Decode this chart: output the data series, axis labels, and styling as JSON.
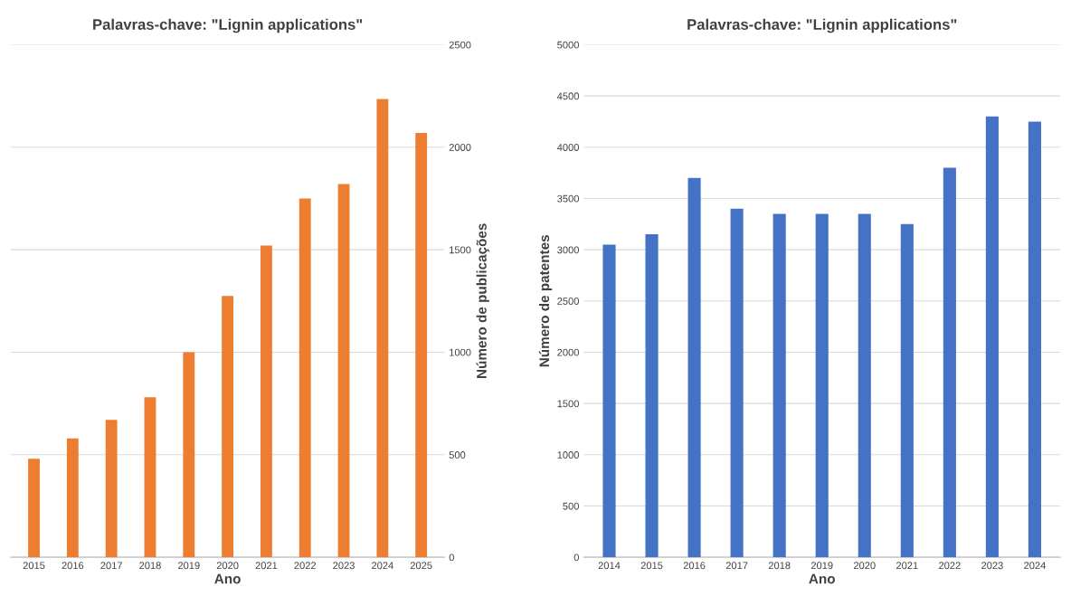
{
  "chart_data": [
    {
      "type": "bar",
      "title": "Palavras-chave: \"Lignin applications\"",
      "xlabel": "Ano",
      "ylabel": "Número de publicações",
      "categories": [
        "2015",
        "2016",
        "2017",
        "2018",
        "2019",
        "2020",
        "2021",
        "2022",
        "2023",
        "2024",
        "2025"
      ],
      "values": [
        480,
        580,
        670,
        780,
        1000,
        1275,
        1520,
        1750,
        1820,
        2235,
        2070
      ],
      "color": "#ed7d31",
      "ylim": [
        0,
        2500
      ],
      "yticks": [
        0,
        500,
        1000,
        1500,
        2000,
        2500
      ],
      "grid": "y"
    },
    {
      "type": "bar",
      "title": "Palavras-chave: \"Lignin applications\"",
      "xlabel": "Ano",
      "ylabel": "Número de patentes",
      "categories": [
        "2014",
        "2015",
        "2016",
        "2017",
        "2018",
        "2019",
        "2020",
        "2021",
        "2022",
        "2023",
        "2024"
      ],
      "values": [
        3050,
        3150,
        3700,
        3400,
        3350,
        3350,
        3350,
        3250,
        3800,
        4300,
        4250
      ],
      "color": "#4472c4",
      "ylim": [
        0,
        5000
      ],
      "yticks": [
        0,
        500,
        1000,
        1500,
        2000,
        2500,
        3000,
        3500,
        4000,
        4500,
        5000
      ],
      "grid": "y"
    }
  ]
}
